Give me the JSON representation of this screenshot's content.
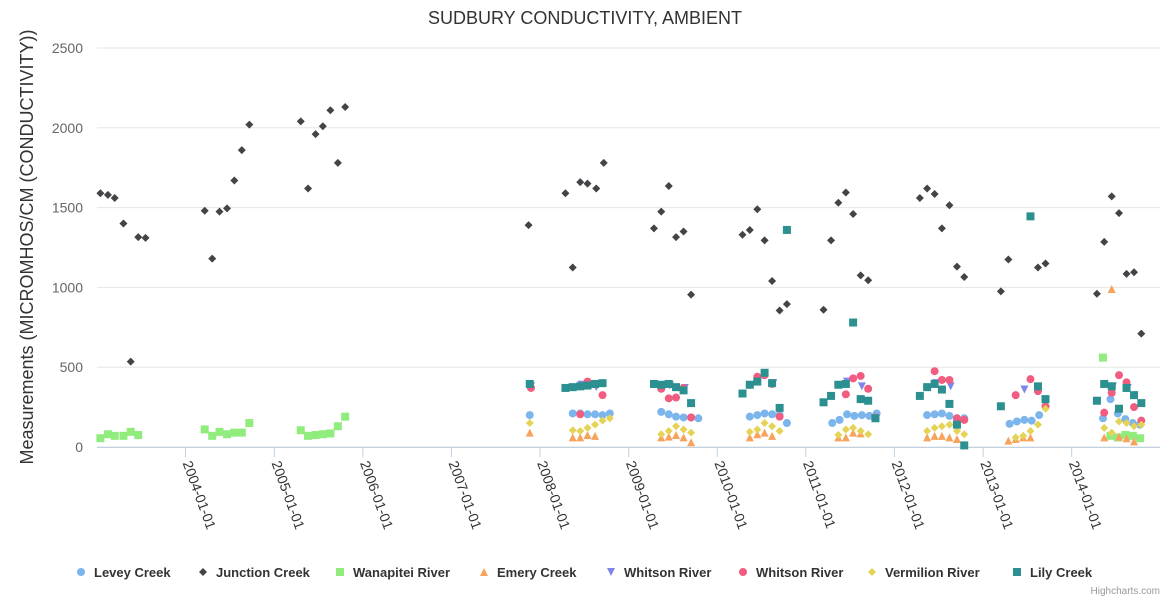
{
  "credits": "Highcharts.com",
  "chart_data": {
    "type": "scatter",
    "title": "SUDBURY CONDUCTIVITY, AMBIENT",
    "xlabel": "",
    "ylabel": "Measurements (MICROMHOS/CM (CONDUCTIVITY))",
    "ylim": [
      0,
      2500
    ],
    "yticks": [
      0,
      500,
      1000,
      1500,
      2000,
      2500
    ],
    "xlim": [
      "2003-01-01",
      "2014-12-31"
    ],
    "xticks": [
      "2004-01-01",
      "2005-01-01",
      "2006-01-01",
      "2007-01-01",
      "2008-01-01",
      "2009-01-01",
      "2010-01-01",
      "2011-01-01",
      "2012-01-01",
      "2013-01-01",
      "2014-01-01"
    ],
    "grid": "horizontal",
    "legend_position": "bottom",
    "series": [
      {
        "name": "Levey Creek",
        "marker": "circle",
        "color": "#7cb5ec",
        "x": [
          "2007-11-20",
          "2008-05-15",
          "2008-06-15",
          "2008-07-15",
          "2008-08-15",
          "2008-09-15",
          "2008-10-15",
          "2009-05-15",
          "2009-06-15",
          "2009-07-15",
          "2009-08-15",
          "2009-09-15",
          "2009-10-15",
          "2010-05-15",
          "2010-06-15",
          "2010-07-15",
          "2010-08-15",
          "2010-09-15",
          "2010-10-15",
          "2011-04-20",
          "2011-05-20",
          "2011-06-20",
          "2011-07-20",
          "2011-08-20",
          "2011-09-20",
          "2011-10-20",
          "2012-05-15",
          "2012-06-15",
          "2012-07-15",
          "2012-08-15",
          "2012-09-15",
          "2012-10-15",
          "2013-04-20",
          "2013-05-20",
          "2013-06-20",
          "2013-07-20",
          "2013-08-20",
          "2014-05-10",
          "2014-06-10",
          "2014-07-10",
          "2014-08-10",
          "2014-09-10",
          "2014-10-10"
        ],
        "values": [
          200,
          210,
          210,
          205,
          205,
          200,
          210,
          220,
          205,
          190,
          185,
          185,
          180,
          190,
          200,
          210,
          205,
          200,
          150,
          150,
          170,
          205,
          195,
          200,
          195,
          210,
          200,
          205,
          210,
          195,
          180,
          180,
          145,
          160,
          170,
          165,
          200,
          180,
          300,
          210,
          175,
          150,
          140
        ]
      },
      {
        "name": "Junction Creek",
        "marker": "diamond",
        "color": "#434348",
        "x": [
          "2003-01-15",
          "2003-02-15",
          "2003-03-15",
          "2003-04-20",
          "2003-05-20",
          "2003-06-20",
          "2003-07-20",
          "2004-03-20",
          "2004-04-20",
          "2004-05-20",
          "2004-06-20",
          "2004-07-20",
          "2004-08-20",
          "2004-09-20",
          "2005-04-20",
          "2005-05-20",
          "2005-06-20",
          "2005-07-20",
          "2005-08-20",
          "2005-09-20",
          "2005-10-20",
          "2007-11-15",
          "2008-04-15",
          "2008-05-15",
          "2008-06-15",
          "2008-07-15",
          "2008-08-20",
          "2008-09-20",
          "2009-04-15",
          "2009-05-15",
          "2009-06-15",
          "2009-07-15",
          "2009-08-15",
          "2009-09-15",
          "2010-04-15",
          "2010-05-15",
          "2010-06-15",
          "2010-07-15",
          "2010-08-15",
          "2010-09-15",
          "2010-10-15",
          "2011-03-15",
          "2011-04-15",
          "2011-05-15",
          "2011-06-15",
          "2011-07-15",
          "2011-08-15",
          "2011-09-15",
          "2012-04-15",
          "2012-05-15",
          "2012-06-15",
          "2012-07-15",
          "2012-08-15",
          "2012-09-15",
          "2012-10-15",
          "2013-03-15",
          "2013-04-15",
          "2013-08-15",
          "2013-09-15",
          "2014-04-15",
          "2014-05-15",
          "2014-06-15",
          "2014-07-15",
          "2014-08-15",
          "2014-09-15",
          "2014-10-15"
        ],
        "values": [
          1590,
          1580,
          1560,
          1400,
          535,
          1315,
          1310,
          1480,
          1180,
          1475,
          1495,
          1670,
          1860,
          2020,
          2040,
          1620,
          1960,
          2010,
          2110,
          1780,
          2130,
          1390,
          1590,
          1125,
          1660,
          1650,
          1620,
          1780,
          1370,
          1475,
          1635,
          1315,
          1350,
          955,
          1330,
          1360,
          1490,
          1295,
          1040,
          855,
          895,
          860,
          1295,
          1530,
          1595,
          1460,
          1075,
          1045,
          1560,
          1620,
          1585,
          1370,
          1515,
          1130,
          1065,
          975,
          1175,
          1125,
          1150,
          960,
          1285,
          1570,
          1465,
          1085,
          1095,
          710
        ]
      },
      {
        "name": "Wanapitei River",
        "marker": "square",
        "color": "#90ed7d",
        "x": [
          "2003-01-15",
          "2003-02-15",
          "2003-03-15",
          "2003-04-20",
          "2003-05-20",
          "2003-06-20",
          "2004-03-20",
          "2004-04-20",
          "2004-05-20",
          "2004-06-20",
          "2004-07-20",
          "2004-08-20",
          "2004-09-20",
          "2005-04-20",
          "2005-05-20",
          "2005-06-20",
          "2005-07-20",
          "2005-08-20",
          "2005-09-20",
          "2005-10-20",
          "2014-05-10",
          "2014-06-10",
          "2014-07-10",
          "2014-08-10",
          "2014-09-10",
          "2014-10-10"
        ],
        "values": [
          55,
          80,
          70,
          70,
          95,
          75,
          110,
          70,
          95,
          80,
          90,
          90,
          150,
          105,
          70,
          75,
          80,
          85,
          130,
          190,
          560,
          70,
          60,
          75,
          70,
          55
        ]
      },
      {
        "name": "Emery Creek",
        "marker": "triangle",
        "color": "#f7a35c",
        "x": [
          "2007-11-20",
          "2008-05-15",
          "2008-06-15",
          "2008-07-15",
          "2008-08-15",
          "2009-05-15",
          "2009-06-15",
          "2009-07-15",
          "2009-08-15",
          "2009-09-15",
          "2010-05-15",
          "2010-06-15",
          "2010-07-15",
          "2010-08-15",
          "2011-05-15",
          "2011-06-15",
          "2011-07-15",
          "2011-08-15",
          "2012-05-15",
          "2012-06-15",
          "2012-07-15",
          "2012-08-15",
          "2012-09-15",
          "2013-04-15",
          "2013-05-15",
          "2013-06-15",
          "2013-07-15",
          "2014-05-15",
          "2014-06-15",
          "2014-07-15",
          "2014-08-15",
          "2014-09-15"
        ],
        "values": [
          90,
          60,
          60,
          75,
          70,
          60,
          65,
          75,
          60,
          30,
          60,
          80,
          90,
          70,
          60,
          60,
          90,
          85,
          60,
          70,
          70,
          60,
          50,
          40,
          50,
          60,
          60,
          60,
          990,
          65,
          55,
          35
        ]
      },
      {
        "name": "Whitson River",
        "marker": "triangle-down",
        "color": "#8085e9",
        "x": [
          "2007-11-25",
          "2008-06-20",
          "2008-08-20",
          "2009-06-20",
          "2009-08-20",
          "2010-06-20",
          "2010-08-20",
          "2011-06-20",
          "2011-08-20",
          "2012-06-20",
          "2012-08-20",
          "2013-06-20",
          "2014-06-20",
          "2014-08-20"
        ],
        "values": [
          380,
          390,
          375,
          385,
          370,
          420,
          400,
          410,
          380,
          400,
          380,
          360,
          380,
          370
        ]
      },
      {
        "name": "Whitson River",
        "marker": "circle",
        "color": "#f15c80",
        "x": [
          "2007-11-25",
          "2008-06-15",
          "2008-07-15",
          "2008-08-15",
          "2008-09-15",
          "2009-05-15",
          "2009-06-15",
          "2009-07-15",
          "2009-08-15",
          "2009-09-15",
          "2010-05-15",
          "2010-06-15",
          "2010-07-15",
          "2010-08-15",
          "2010-09-15",
          "2011-06-15",
          "2011-07-15",
          "2011-08-15",
          "2011-09-15",
          "2011-10-15",
          "2012-06-15",
          "2012-07-15",
          "2012-08-15",
          "2012-09-15",
          "2012-10-15",
          "2013-05-15",
          "2013-07-15",
          "2013-08-15",
          "2013-09-15",
          "2014-05-15",
          "2014-06-15",
          "2014-07-15",
          "2014-08-15",
          "2014-09-15",
          "2014-10-15"
        ],
        "values": [
          370,
          205,
          410,
          395,
          325,
          365,
          305,
          310,
          370,
          185,
          390,
          440,
          450,
          395,
          190,
          330,
          430,
          445,
          365,
          185,
          475,
          420,
          420,
          180,
          170,
          325,
          425,
          350,
          255,
          215,
          340,
          450,
          405,
          250,
          165
        ]
      },
      {
        "name": "Vermilion River",
        "marker": "diamond",
        "color": "#e4d354",
        "x": [
          "2007-11-20",
          "2008-05-15",
          "2008-06-15",
          "2008-07-15",
          "2008-08-15",
          "2008-09-15",
          "2008-10-15",
          "2009-05-15",
          "2009-06-15",
          "2009-07-15",
          "2009-08-15",
          "2009-09-15",
          "2010-05-15",
          "2010-06-15",
          "2010-07-15",
          "2010-08-15",
          "2010-09-15",
          "2011-05-15",
          "2011-06-15",
          "2011-07-15",
          "2011-08-15",
          "2011-09-15",
          "2012-05-15",
          "2012-06-15",
          "2012-07-15",
          "2012-08-15",
          "2012-09-15",
          "2012-10-15",
          "2013-05-15",
          "2013-06-15",
          "2013-07-15",
          "2013-08-15",
          "2013-09-15",
          "2014-05-15",
          "2014-06-15",
          "2014-07-15",
          "2014-08-15",
          "2014-09-15",
          "2014-10-15"
        ],
        "values": [
          150,
          105,
          100,
          120,
          140,
          165,
          180,
          80,
          100,
          130,
          110,
          90,
          95,
          110,
          150,
          130,
          100,
          75,
          110,
          120,
          100,
          80,
          100,
          120,
          130,
          140,
          100,
          80,
          60,
          70,
          100,
          140,
          240,
          120,
          90,
          160,
          150,
          130,
          140
        ]
      },
      {
        "name": "Lily Creek",
        "marker": "square",
        "color": "#2b908f",
        "x": [
          "2007-11-20",
          "2008-04-15",
          "2008-05-15",
          "2008-06-15",
          "2008-07-15",
          "2008-08-15",
          "2008-09-15",
          "2009-04-15",
          "2009-05-15",
          "2009-06-15",
          "2009-07-15",
          "2009-08-15",
          "2009-09-15",
          "2010-04-15",
          "2010-05-15",
          "2010-06-15",
          "2010-07-15",
          "2010-08-15",
          "2010-09-15",
          "2010-10-15",
          "2011-03-15",
          "2011-04-15",
          "2011-05-15",
          "2011-06-15",
          "2011-07-15",
          "2011-08-15",
          "2011-09-15",
          "2011-10-15",
          "2012-04-15",
          "2012-05-15",
          "2012-06-15",
          "2012-07-15",
          "2012-08-15",
          "2012-09-15",
          "2012-10-15",
          "2013-03-15",
          "2013-07-15",
          "2013-08-15",
          "2013-09-15",
          "2014-04-15",
          "2014-05-15",
          "2014-06-15",
          "2014-07-15",
          "2014-08-15",
          "2014-09-15",
          "2014-10-15"
        ],
        "values": [
          395,
          370,
          375,
          380,
          385,
          395,
          400,
          395,
          390,
          395,
          375,
          355,
          275,
          335,
          390,
          410,
          465,
          400,
          245,
          1360,
          280,
          320,
          390,
          395,
          780,
          300,
          290,
          180,
          320,
          375,
          395,
          360,
          270,
          140,
          10,
          255,
          1445,
          380,
          300,
          290,
          395,
          380,
          240,
          370,
          325,
          275
        ]
      }
    ]
  }
}
